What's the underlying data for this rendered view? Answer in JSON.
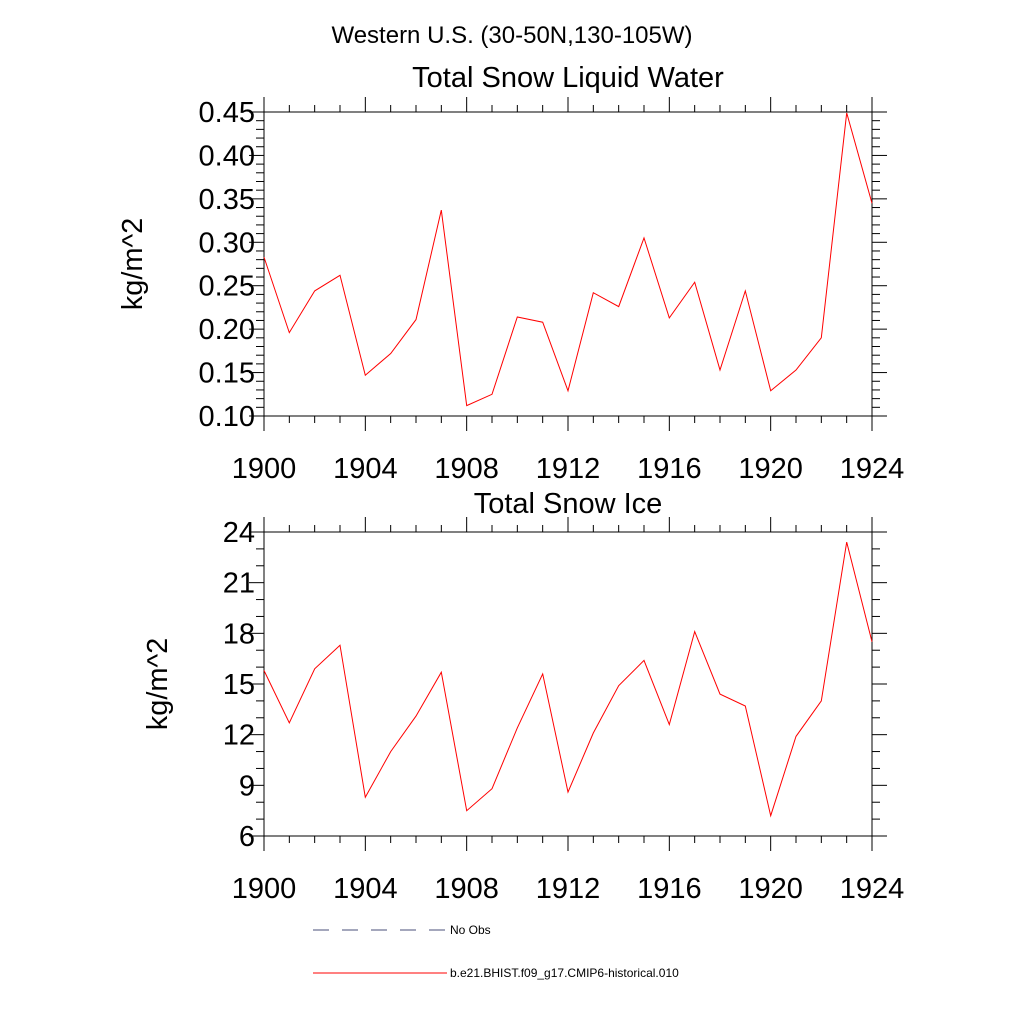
{
  "figure": {
    "title": "Western U.S. (30-50N,130-105W)"
  },
  "chart_data": [
    {
      "type": "line",
      "title": "Total Snow Liquid Water",
      "xlabel": "",
      "ylabel": "kg/m^2",
      "xlim": [
        1900,
        1924
      ],
      "ylim": [
        0.1,
        0.45
      ],
      "x_ticks": [
        "1900",
        "1904",
        "1908",
        "1912",
        "1916",
        "1920",
        "1924"
      ],
      "y_ticks": [
        "0.10",
        "0.15",
        "0.20",
        "0.25",
        "0.30",
        "0.35",
        "0.40",
        "0.45"
      ],
      "grid": false,
      "x": [
        1900,
        1901,
        1902,
        1903,
        1904,
        1905,
        1906,
        1907,
        1908,
        1909,
        1910,
        1911,
        1912,
        1913,
        1914,
        1915,
        1916,
        1917,
        1918,
        1919,
        1920,
        1921,
        1922,
        1923,
        1924
      ],
      "series": [
        {
          "color": "#ff0000",
          "values": [
            0.283,
            0.196,
            0.244,
            0.262,
            0.147,
            0.172,
            0.211,
            0.337,
            0.112,
            0.125,
            0.214,
            0.208,
            0.129,
            0.242,
            0.226,
            0.305,
            0.213,
            0.254,
            0.153,
            0.244,
            0.129,
            0.153,
            0.19,
            0.449,
            0.345
          ]
        }
      ]
    },
    {
      "type": "line",
      "title": "Total Snow Ice",
      "xlabel": "",
      "ylabel": "kg/m^2",
      "xlim": [
        1900,
        1924
      ],
      "ylim": [
        6,
        24
      ],
      "x_ticks": [
        "1900",
        "1904",
        "1908",
        "1912",
        "1916",
        "1920",
        "1924"
      ],
      "y_ticks": [
        "6",
        "9",
        "12",
        "15",
        "18",
        "21",
        "24"
      ],
      "grid": false,
      "x": [
        1900,
        1901,
        1902,
        1903,
        1904,
        1905,
        1906,
        1907,
        1908,
        1909,
        1910,
        1911,
        1912,
        1913,
        1914,
        1915,
        1916,
        1917,
        1918,
        1919,
        1920,
        1921,
        1922,
        1923,
        1924
      ],
      "series": [
        {
          "color": "#ff0000",
          "values": [
            15.8,
            12.7,
            15.9,
            17.3,
            8.3,
            11.0,
            13.1,
            15.7,
            7.5,
            8.8,
            12.4,
            15.6,
            8.6,
            12.1,
            14.9,
            16.4,
            12.6,
            18.1,
            14.4,
            13.7,
            7.2,
            11.9,
            14.0,
            23.4,
            17.5
          ]
        }
      ]
    }
  ],
  "legend": {
    "placement": "bottom",
    "items": [
      {
        "label": "No Obs",
        "color": "#4a4f7a",
        "style": "dashed"
      },
      {
        "label": "b.e21.BHIST.f09_g17.CMIP6-historical.010",
        "color": "#ff0000",
        "style": "solid"
      }
    ]
  }
}
